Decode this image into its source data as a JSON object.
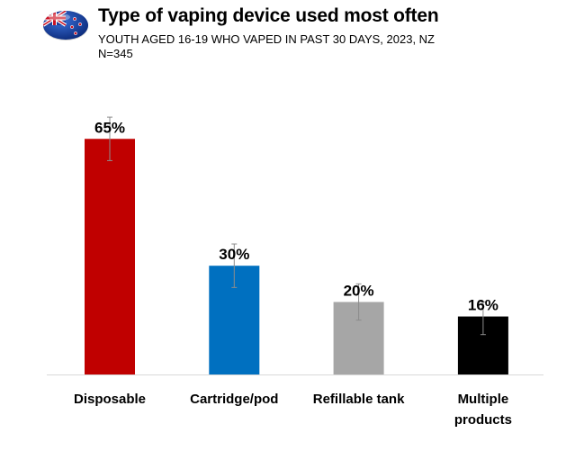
{
  "header": {
    "title": "Type of vaping device used most often",
    "subtitle": "YOUTH AGED 16-19 WHO VAPED IN PAST 30 DAYS, 2023, NZ",
    "sample": "N=345",
    "flag_icon": "nz-flag-globe-icon"
  },
  "chart_data": {
    "type": "bar",
    "categories": [
      [
        "Disposable"
      ],
      [
        "Cartridge/pod"
      ],
      [
        "Refillable tank"
      ],
      [
        "Multiple",
        "products"
      ]
    ],
    "values": [
      65,
      30,
      20,
      16
    ],
    "data_labels": [
      "65%",
      "30%",
      "20%",
      "16%"
    ],
    "error_low": [
      59,
      24,
      15,
      11
    ],
    "error_high": [
      71,
      36,
      25,
      20
    ],
    "colors": [
      "#c00000",
      "#0070c0",
      "#a6a6a6",
      "#000000"
    ],
    "ylim": [
      0,
      75
    ],
    "grid": false,
    "legend": "none",
    "unit": "%"
  }
}
